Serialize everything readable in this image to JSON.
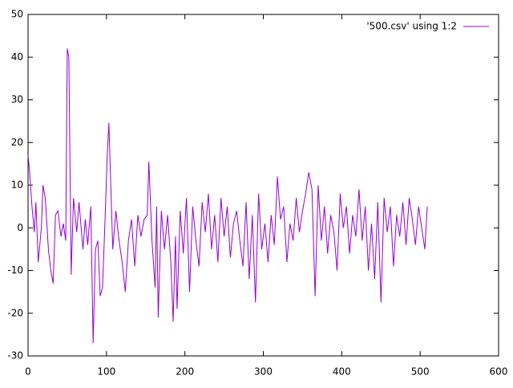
{
  "chart_data": {
    "type": "line",
    "series": [
      {
        "name": "'500.csv' using 1:2",
        "color": "#9400d3",
        "x": [
          0,
          2,
          5,
          8,
          10,
          13,
          17,
          19,
          22,
          26,
          29,
          32,
          35,
          38,
          42,
          45,
          48,
          50,
          52,
          55,
          58,
          62,
          65,
          70,
          73,
          76,
          80,
          83,
          86,
          89,
          92,
          95,
          98,
          101,
          103,
          106,
          108,
          112,
          116,
          120,
          124,
          128,
          132,
          136,
          140,
          144,
          148,
          152,
          154,
          158,
          162,
          164,
          166,
          170,
          174,
          178,
          182,
          185,
          188,
          190,
          194,
          198,
          202,
          206,
          210,
          214,
          218,
          222,
          226,
          230,
          234,
          238,
          242,
          246,
          250,
          254,
          258,
          262,
          266,
          270,
          274,
          278,
          282,
          286,
          290,
          294,
          298,
          302,
          306,
          310,
          314,
          318,
          322,
          326,
          330,
          334,
          338,
          342,
          346,
          350,
          354,
          358,
          362,
          366,
          370,
          374,
          378,
          382,
          386,
          390,
          394,
          398,
          402,
          406,
          410,
          414,
          418,
          422,
          426,
          430,
          434,
          438,
          442,
          446,
          450,
          454,
          458,
          462,
          466,
          470,
          474,
          478,
          482,
          486,
          490,
          494,
          498,
          502,
          506,
          509
        ],
        "values": [
          17,
          13,
          5,
          -1,
          6,
          -8,
          0,
          10,
          7,
          -5,
          -10,
          -13,
          3,
          4,
          -2,
          1,
          -3,
          42,
          40,
          -11,
          7,
          -1,
          6,
          -5,
          2,
          -4,
          5,
          -27,
          -5,
          -3,
          -16,
          -14,
          1,
          17,
          24.6,
          7,
          -5,
          4,
          -3,
          -8,
          -15,
          -3,
          2,
          -9,
          3,
          -2,
          2,
          3,
          15.5,
          -3,
          -14,
          5,
          -21,
          4,
          -5,
          3,
          -8,
          -22,
          -2,
          -19,
          4,
          -6,
          7,
          -15,
          5,
          -3,
          -9,
          6,
          -1,
          8,
          -5,
          3,
          -8,
          7,
          -2,
          5,
          -7,
          1,
          4,
          -3,
          -9,
          6,
          -12,
          3,
          -17.5,
          8,
          -5,
          1,
          -8,
          3,
          -4,
          12,
          2,
          5,
          -8,
          1,
          -3,
          7,
          -1,
          4,
          8,
          13,
          9,
          -16,
          10,
          -3,
          5,
          -6,
          3,
          -1,
          -10,
          8,
          0,
          5,
          -6,
          3,
          -2,
          9,
          -3,
          5,
          -10,
          1,
          -12,
          6,
          -17.5,
          7,
          -1,
          5,
          -9,
          3,
          -2,
          6,
          -4,
          7,
          2,
          -4,
          5,
          0,
          -5,
          5
        ]
      }
    ],
    "xlim": [
      0,
      600
    ],
    "xticks": [
      0,
      100,
      200,
      300,
      400,
      500,
      600
    ],
    "ylim": [
      -30,
      50
    ],
    "yticks": [
      -30,
      -20,
      -10,
      0,
      10,
      20,
      30,
      40,
      50
    ],
    "legend": "top-right"
  }
}
